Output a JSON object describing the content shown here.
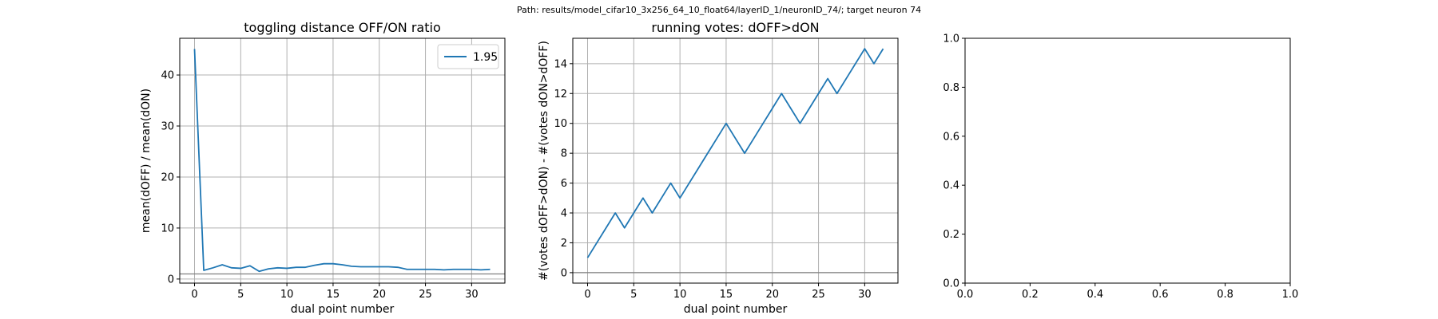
{
  "suptitle": "Path: results/model_cifar10_3x256_64_10_float64/layerID_1/neuronID_74/; target neuron 74",
  "colors": {
    "series": "#1f77b4",
    "hline": "#808080",
    "grid": "#b0b0b0"
  },
  "chart_data": [
    {
      "type": "line",
      "title": "toggling distance OFF/ON ratio",
      "xlabel": "dual point number",
      "ylabel": "mean(dOFF) / mean(dON)",
      "xlim": [
        -1.6,
        33.6
      ],
      "ylim": [
        -0.8,
        47.2
      ],
      "xticks": [
        0,
        5,
        10,
        15,
        20,
        25,
        30
      ],
      "yticks": [
        0,
        10,
        20,
        30,
        40
      ],
      "grid": true,
      "hline": 1,
      "legend": "upper right",
      "series": [
        {
          "name": "1.95",
          "x": [
            0,
            1,
            2,
            3,
            4,
            5,
            6,
            7,
            8,
            9,
            10,
            11,
            12,
            13,
            14,
            15,
            16,
            17,
            18,
            19,
            20,
            21,
            22,
            23,
            24,
            25,
            26,
            27,
            28,
            29,
            30,
            31,
            32
          ],
          "y": [
            45.1,
            1.7,
            2.2,
            2.8,
            2.2,
            2.1,
            2.6,
            1.5,
            2.0,
            2.2,
            2.1,
            2.3,
            2.3,
            2.7,
            3.0,
            3.0,
            2.8,
            2.5,
            2.4,
            2.4,
            2.4,
            2.4,
            2.3,
            1.9,
            1.9,
            1.9,
            1.9,
            1.8,
            1.9,
            1.9,
            1.9,
            1.8,
            1.9
          ]
        }
      ]
    },
    {
      "type": "line",
      "title": "running votes: dOFF>dON",
      "xlabel": "dual point number",
      "ylabel": "#(votes dOFF>dON) - #(votes dON>dOFF)",
      "xlim": [
        -1.6,
        33.6
      ],
      "ylim": [
        -0.7,
        15.7
      ],
      "xticks": [
        0,
        5,
        10,
        15,
        20,
        25,
        30
      ],
      "yticks": [
        0,
        2,
        4,
        6,
        8,
        10,
        12,
        14
      ],
      "grid": true,
      "hline": 0,
      "series": [
        {
          "x": [
            0,
            1,
            2,
            3,
            4,
            5,
            6,
            7,
            8,
            9,
            10,
            11,
            12,
            13,
            14,
            15,
            16,
            17,
            18,
            19,
            20,
            21,
            22,
            23,
            24,
            25,
            26,
            27,
            28,
            29,
            30,
            31,
            32
          ],
          "y": [
            1,
            2,
            3,
            4,
            3,
            4,
            5,
            4,
            5,
            6,
            5,
            6,
            7,
            8,
            9,
            10,
            9,
            8,
            9,
            10,
            11,
            12,
            11,
            10,
            11,
            12,
            13,
            12,
            13,
            14,
            15,
            14,
            15
          ]
        }
      ]
    },
    {
      "type": "line",
      "title": "",
      "xlim": [
        0,
        1
      ],
      "ylim": [
        0,
        1
      ],
      "xticks": [
        0.0,
        0.2,
        0.4,
        0.6,
        0.8,
        1.0
      ],
      "yticks": [
        0.0,
        0.2,
        0.4,
        0.6,
        0.8,
        1.0
      ],
      "grid": false,
      "series": []
    }
  ]
}
